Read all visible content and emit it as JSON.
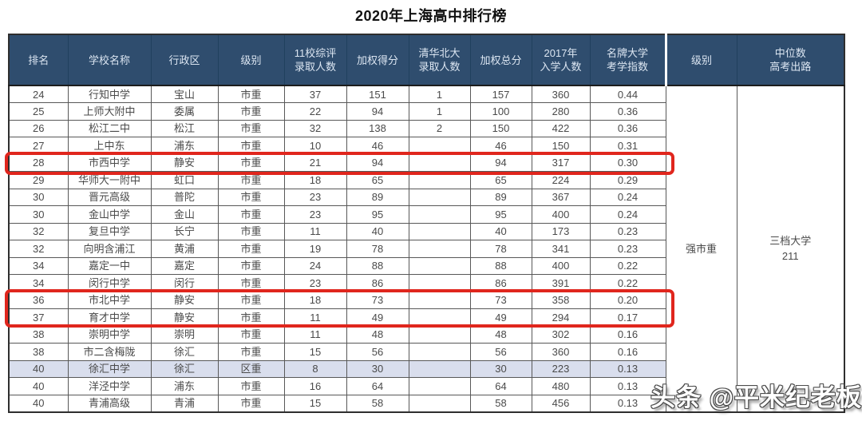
{
  "title": "2020年上海高中排行榜",
  "watermark": "头条 @平米纪老板",
  "colors": {
    "header_bg": "#2f4d6e",
    "header_text": "#dce6f2",
    "highlight_row_bg": "#d9deed",
    "annotation_red": "#e0261d",
    "cell_text": "#4a4a4a",
    "border": "#585858"
  },
  "table": {
    "headers": [
      "排名",
      "学校名称",
      "行政区",
      "级别",
      "11校综评\n录取人数",
      "加权得分",
      "清华北大\n录取人数",
      "加权总分",
      "2017年\n入学人数",
      "名牌大学\n考学指数",
      "级别",
      "中位数\n高考出路"
    ],
    "merged": {
      "level_group": "强市重",
      "median_outcome": "三档大学\n211"
    },
    "rows": [
      {
        "rank": "24",
        "school": "行知中学",
        "district": "宝山",
        "level": "市重",
        "comp": "37",
        "score": "151",
        "qh": "1",
        "total": "157",
        "enroll": "360",
        "idx": "0.44",
        "highlight": false,
        "red_boxed": false
      },
      {
        "rank": "25",
        "school": "上师大附中",
        "district": "委属",
        "level": "市重",
        "comp": "22",
        "score": "94",
        "qh": "1",
        "total": "100",
        "enroll": "280",
        "idx": "0.36",
        "highlight": false,
        "red_boxed": false
      },
      {
        "rank": "26",
        "school": "松江二中",
        "district": "松江",
        "level": "市重",
        "comp": "32",
        "score": "138",
        "qh": "2",
        "total": "150",
        "enroll": "422",
        "idx": "0.36",
        "highlight": false,
        "red_boxed": false
      },
      {
        "rank": "27",
        "school": "上中东",
        "district": "浦东",
        "level": "市重",
        "comp": "10",
        "score": "46",
        "qh": "",
        "total": "46",
        "enroll": "150",
        "idx": "0.31",
        "highlight": false,
        "red_boxed": false
      },
      {
        "rank": "28",
        "school": "市西中学",
        "district": "静安",
        "level": "市重",
        "comp": "21",
        "score": "94",
        "qh": "",
        "total": "94",
        "enroll": "317",
        "idx": "0.30",
        "highlight": false,
        "red_boxed": true
      },
      {
        "rank": "29",
        "school": "华师大一附中",
        "district": "虹口",
        "level": "市重",
        "comp": "18",
        "score": "65",
        "qh": "",
        "total": "65",
        "enroll": "224",
        "idx": "0.29",
        "highlight": false,
        "red_boxed": false
      },
      {
        "rank": "30",
        "school": "晋元高级",
        "district": "普陀",
        "level": "市重",
        "comp": "23",
        "score": "89",
        "qh": "",
        "total": "89",
        "enroll": "367",
        "idx": "0.24",
        "highlight": false,
        "red_boxed": false
      },
      {
        "rank": "30",
        "school": "金山中学",
        "district": "金山",
        "level": "市重",
        "comp": "23",
        "score": "95",
        "qh": "",
        "total": "95",
        "enroll": "400",
        "idx": "0.24",
        "highlight": false,
        "red_boxed": false
      },
      {
        "rank": "32",
        "school": "复旦中学",
        "district": "长宁",
        "level": "市重",
        "comp": "11",
        "score": "40",
        "qh": "",
        "total": "40",
        "enroll": "173",
        "idx": "0.23",
        "highlight": false,
        "red_boxed": false
      },
      {
        "rank": "32",
        "school": "向明含浦江",
        "district": "黄浦",
        "level": "市重",
        "comp": "19",
        "score": "78",
        "qh": "",
        "total": "78",
        "enroll": "341",
        "idx": "0.23",
        "highlight": false,
        "red_boxed": false
      },
      {
        "rank": "34",
        "school": "嘉定一中",
        "district": "嘉定",
        "level": "市重",
        "comp": "24",
        "score": "88",
        "qh": "",
        "total": "88",
        "enroll": "400",
        "idx": "0.22",
        "highlight": false,
        "red_boxed": false
      },
      {
        "rank": "34",
        "school": "闵行中学",
        "district": "闵行",
        "level": "市重",
        "comp": "23",
        "score": "86",
        "qh": "",
        "total": "86",
        "enroll": "391",
        "idx": "0.22",
        "highlight": false,
        "red_boxed": false
      },
      {
        "rank": "36",
        "school": "市北中学",
        "district": "静安",
        "level": "市重",
        "comp": "18",
        "score": "73",
        "qh": "",
        "total": "73",
        "enroll": "358",
        "idx": "0.20",
        "highlight": false,
        "red_boxed": true
      },
      {
        "rank": "37",
        "school": "育才中学",
        "district": "静安",
        "level": "市重",
        "comp": "11",
        "score": "49",
        "qh": "",
        "total": "49",
        "enroll": "294",
        "idx": "0.17",
        "highlight": false,
        "red_boxed": true
      },
      {
        "rank": "38",
        "school": "崇明中学",
        "district": "崇明",
        "level": "市重",
        "comp": "11",
        "score": "48",
        "qh": "",
        "total": "48",
        "enroll": "302",
        "idx": "0.16",
        "highlight": false,
        "red_boxed": false
      },
      {
        "rank": "38",
        "school": "市二含梅陇",
        "district": "徐汇",
        "level": "市重",
        "comp": "15",
        "score": "56",
        "qh": "",
        "total": "56",
        "enroll": "360",
        "idx": "0.16",
        "highlight": false,
        "red_boxed": false
      },
      {
        "rank": "40",
        "school": "徐汇中学",
        "district": "徐汇",
        "level": "区重",
        "comp": "8",
        "score": "30",
        "qh": "",
        "total": "30",
        "enroll": "223",
        "idx": "0.13",
        "highlight": true,
        "red_boxed": false
      },
      {
        "rank": "40",
        "school": "洋泾中学",
        "district": "浦东",
        "level": "市重",
        "comp": "16",
        "score": "64",
        "qh": "",
        "total": "64",
        "enroll": "480",
        "idx": "0.13",
        "highlight": false,
        "red_boxed": false
      },
      {
        "rank": "40",
        "school": "青浦高级",
        "district": "青浦",
        "level": "市重",
        "comp": "15",
        "score": "58",
        "qh": "",
        "total": "58",
        "enroll": "456",
        "idx": "0.13",
        "highlight": false,
        "red_boxed": false
      }
    ]
  }
}
